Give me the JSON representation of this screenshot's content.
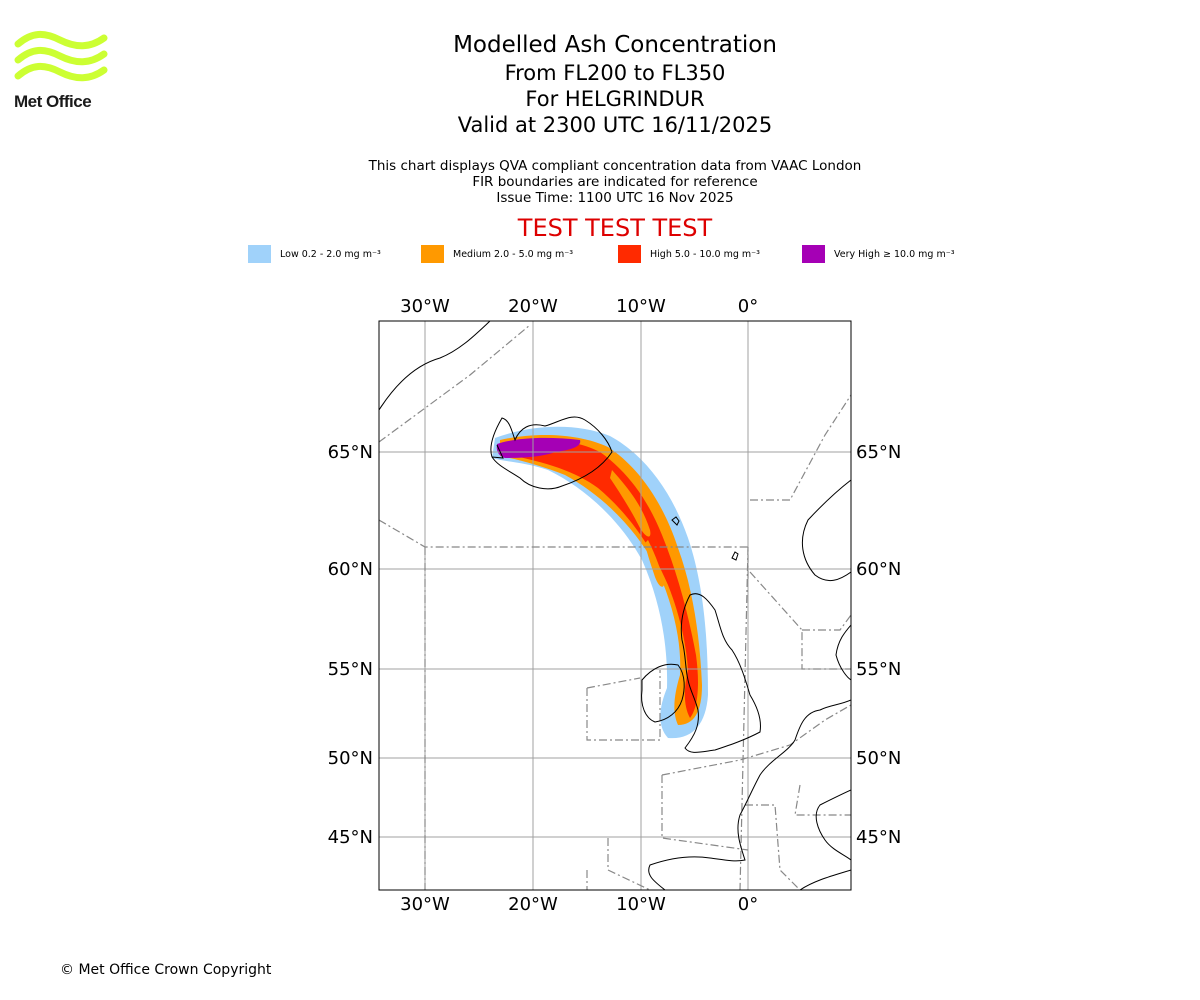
{
  "logo": {
    "text": "Met Office",
    "color": "#ccff33"
  },
  "title": {
    "main": "Modelled Ash Concentration",
    "levels": "From FL200 to FL350",
    "volcano": "For HELGRINDUR",
    "valid": "Valid at 2300 UTC 16/11/2025"
  },
  "subtitle": {
    "line1": "This chart displays QVA compliant concentration data from VAAC London",
    "line2": "FIR boundaries are indicated for reference",
    "line3": "Issue Time: 1100 UTC 16 Nov 2025"
  },
  "test_banner": "TEST TEST TEST",
  "legend": [
    {
      "label": "Low 0.2 - 2.0 mg m⁻³",
      "color": "#a0d2fa"
    },
    {
      "label": "Medium 2.0 - 5.0 mg m⁻³",
      "color": "#ff9900"
    },
    {
      "label": "High 5.0 - 10.0 mg m⁻³",
      "color": "#ff2a00"
    },
    {
      "label": "Very High ≥ 10.0 mg m⁻³",
      "color": "#a500b5"
    }
  ],
  "axes": {
    "lon_labels": [
      "30°W",
      "20°W",
      "10°W",
      "0°"
    ],
    "lat_labels": [
      "65°N",
      "60°N",
      "55°N",
      "50°N",
      "45°N"
    ]
  },
  "copyright": "© Met Office Crown Copyright"
}
